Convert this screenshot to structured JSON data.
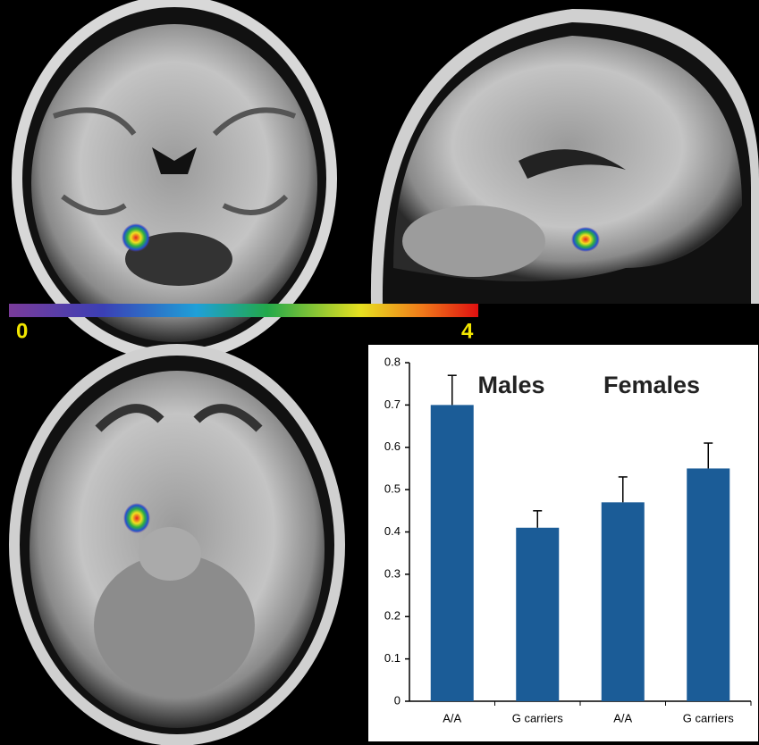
{
  "chart_data": {
    "type": "bar",
    "categories": [
      "A/A",
      "G carriers",
      "A/A",
      "G carriers"
    ],
    "values": [
      0.7,
      0.41,
      0.47,
      0.55
    ],
    "errors": [
      0.07,
      0.04,
      0.06,
      0.06
    ],
    "color": "#1b5c97",
    "ylim": [
      0,
      0.8
    ],
    "yticks": [
      0,
      0.1,
      0.2,
      0.3,
      0.4,
      0.5,
      0.6,
      0.7,
      0.8
    ],
    "annotations": [
      "Males",
      "Females"
    ]
  },
  "colorbar": {
    "ticks": [
      0,
      4
    ]
  }
}
